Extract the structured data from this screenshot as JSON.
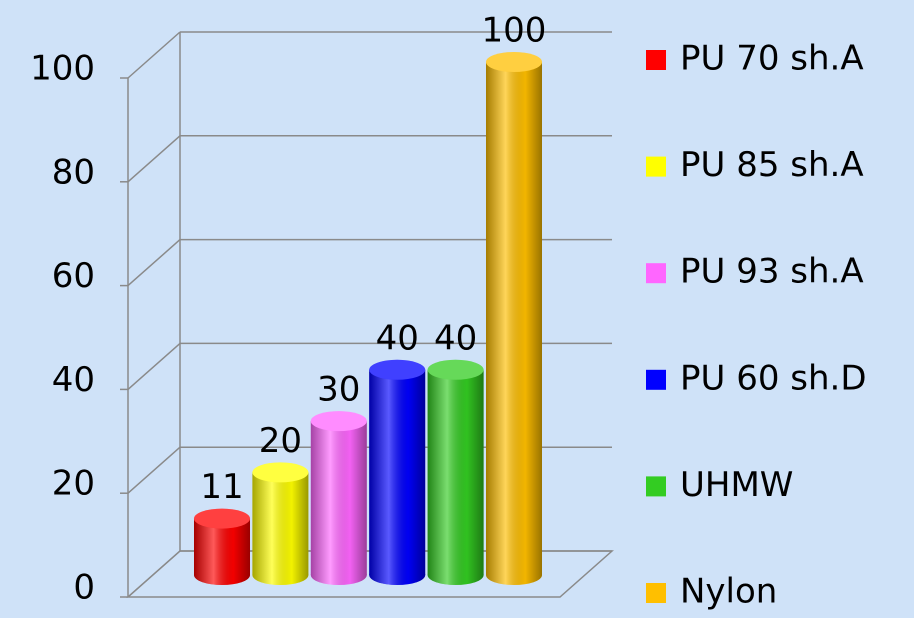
{
  "chart_data": {
    "type": "bar3d",
    "series": [
      {
        "name": "PU 70 sh.A",
        "color": "#ff0000",
        "values": [
          11
        ]
      },
      {
        "name": "PU 85 sh.A",
        "color": "#ffff00",
        "values": [
          20
        ]
      },
      {
        "name": "PU 93 sh.A",
        "color": "#ff66ff",
        "values": [
          30
        ]
      },
      {
        "name": "PU 60 sh.D",
        "color": "#0000ff",
        "values": [
          40
        ]
      },
      {
        "name": "UHMW",
        "color": "#33cc22",
        "values": [
          40
        ]
      },
      {
        "name": "Nylon",
        "color": "#ffbf00",
        "values": [
          100
        ]
      }
    ],
    "ylim": [
      0,
      100
    ],
    "yticks": [
      0,
      20,
      40,
      60,
      80,
      100
    ],
    "grid": true,
    "legend": "right"
  }
}
